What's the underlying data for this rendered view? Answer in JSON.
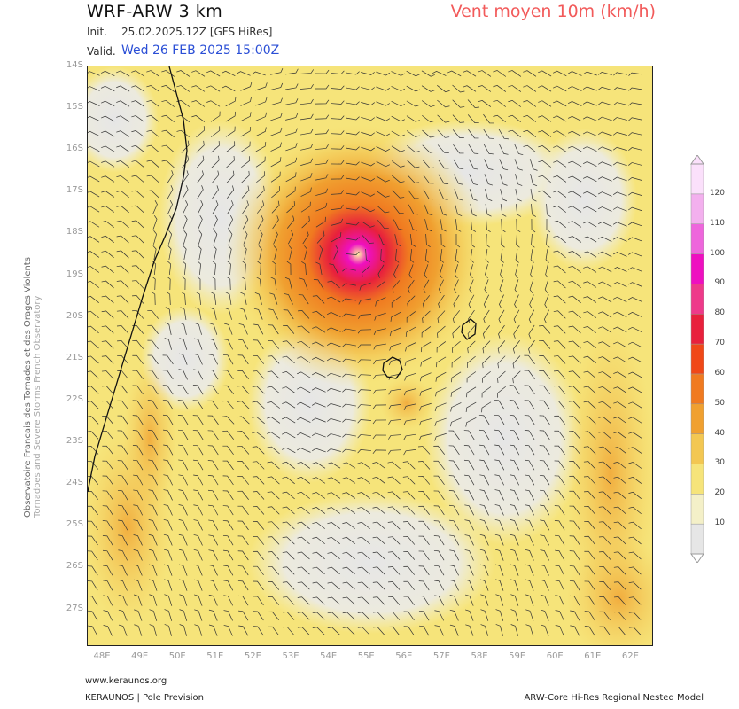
{
  "header": {
    "title": "WRF-ARW 3 km",
    "product": "Vent moyen 10m (km/h)",
    "init_label": "Init.",
    "init_value": "25.02.2025.12Z [GFS HiRes]",
    "valid_label": "Valid.",
    "valid_value": "Wed 26 FEB 2025 15:00Z"
  },
  "map": {
    "lat_labels": [
      "14S",
      "15S",
      "16S",
      "17S",
      "18S",
      "19S",
      "20S",
      "21S",
      "22S",
      "23S",
      "24S",
      "25S",
      "26S",
      "27S"
    ],
    "lon_labels": [
      "48E",
      "49E",
      "50E",
      "51E",
      "52E",
      "53E",
      "54E",
      "55E",
      "56E",
      "57E",
      "58E",
      "59E",
      "60E",
      "61E",
      "62E"
    ],
    "lat_range": [
      -14,
      -27.9
    ],
    "lon_range": [
      47.6,
      62.6
    ],
    "cyclone_center": {
      "lat": -18.6,
      "lon": 54.6
    },
    "colors": {
      "background": "#f5e67a",
      "calm": "#e6e6e6",
      "orange": "#f0a030",
      "red": "#e8203c",
      "magenta": "#ee10c0"
    }
  },
  "colorbar": {
    "levels": [
      "10",
      "20",
      "30",
      "40",
      "50",
      "60",
      "70",
      "80",
      "90",
      "100",
      "110",
      "120"
    ],
    "colors": [
      "#e6e6e6",
      "#f4f0c8",
      "#f6e47a",
      "#f3c752",
      "#f0a030",
      "#f07a20",
      "#f04818",
      "#e8203c",
      "#ee3a8a",
      "#ee10c0",
      "#ee66dc",
      "#f3b0ee",
      "#fbe0fb"
    ]
  },
  "side_text": {
    "line1": "Observatoire Francais des Tornades et des Orages Violents",
    "line2": "Tornadoes and Severe Storms French Observatory"
  },
  "footer": {
    "website": "www.keraunos.org",
    "company": "KERAUNOS | Pole Prevision",
    "model": "ARW-Core Hi-Res Regional Nested Model"
  }
}
